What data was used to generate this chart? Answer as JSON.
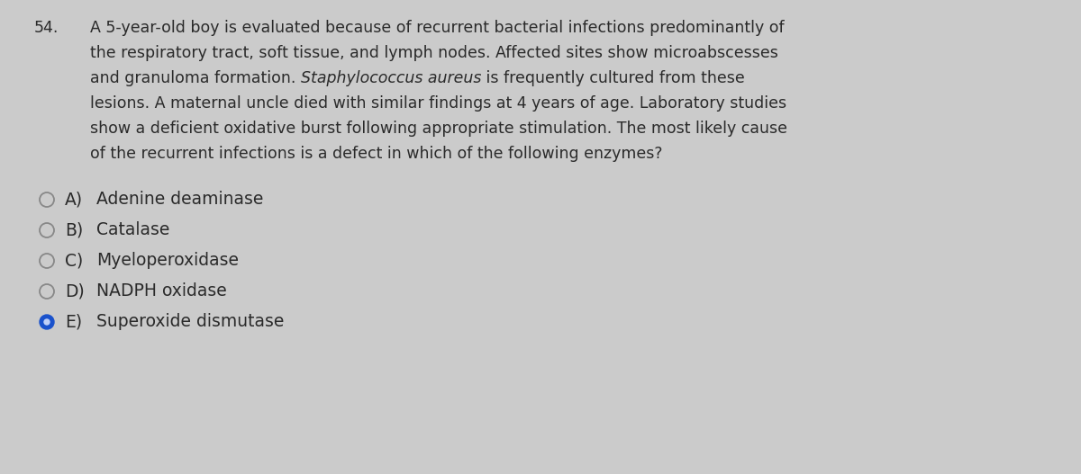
{
  "question_number": "54.",
  "question_text_lines": [
    "A 5-year-old boy is evaluated because of recurrent bacterial infections predominantly of",
    "the respiratory tract, soft tissue, and lymph nodes. Affected sites show microabscesses",
    "and granuloma formation. \u0000Staphylococcus aureus\u0001 is frequently cultured from these",
    "lesions. A maternal uncle died with similar findings at 4 years of age. Laboratory studies",
    "show a deficient oxidative burst following appropriate stimulation. The most likely cause",
    "of the recurrent infections is a defect in which of the following enzymes?"
  ],
  "options": [
    {
      "label": "A)",
      "text": "Adenine deaminase",
      "filled": false
    },
    {
      "label": "B)",
      "text": "Catalase",
      "filled": false
    },
    {
      "label": "C)",
      "text": "Myeloperoxidase",
      "filled": false
    },
    {
      "label": "D)",
      "text": "NADPH oxidase",
      "filled": false
    },
    {
      "label": "E)",
      "text": "Superoxide dismutase",
      "filled": true
    }
  ],
  "background_color": "#cbcbcb",
  "text_color": "#2a2a2a",
  "circle_edge_color": "#888888",
  "selected_fill_color": "#1a52cc",
  "selected_dot_color": "#c0d0f8",
  "fig_width": 12.0,
  "fig_height": 5.27,
  "q_font_size": 12.5,
  "opt_font_size": 13.5
}
